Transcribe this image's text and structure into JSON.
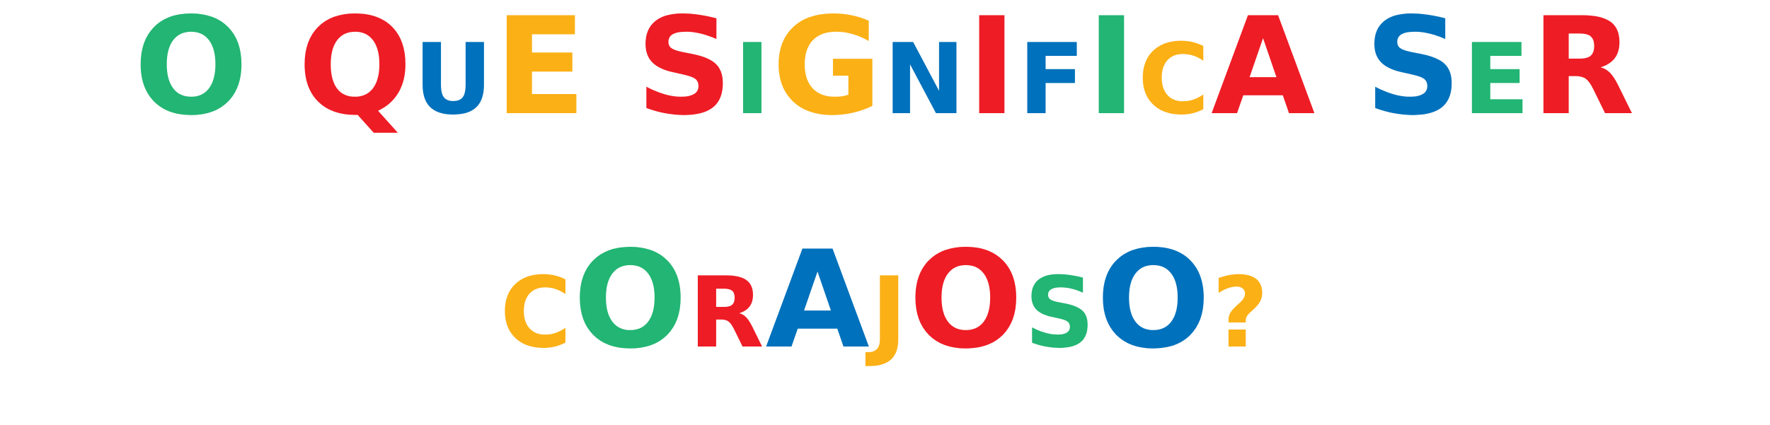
{
  "title_lines": [
    {
      "chars": [
        {
          "t": "O",
          "c": "#22B573",
          "s": "big"
        },
        {
          "t": " ",
          "c": "#000000",
          "s": "big"
        },
        {
          "t": "Q",
          "c": "#EE1C25",
          "s": "big"
        },
        {
          "t": "U",
          "c": "#0071BC",
          "s": "small"
        },
        {
          "t": "E",
          "c": "#FBB016",
          "s": "big"
        },
        {
          "t": " ",
          "c": "#000000",
          "s": "big"
        },
        {
          "t": "S",
          "c": "#EE1C25",
          "s": "big"
        },
        {
          "t": "I",
          "c": "#22B573",
          "s": "small"
        },
        {
          "t": "G",
          "c": "#FBB016",
          "s": "big"
        },
        {
          "t": "N",
          "c": "#0071BC",
          "s": "small"
        },
        {
          "t": "I",
          "c": "#EE1C25",
          "s": "big"
        },
        {
          "t": "F",
          "c": "#0071BC",
          "s": "small"
        },
        {
          "t": "I",
          "c": "#22B573",
          "s": "big"
        },
        {
          "t": "C",
          "c": "#FBB016",
          "s": "small"
        },
        {
          "t": "A",
          "c": "#EE1C25",
          "s": "big"
        },
        {
          "t": " ",
          "c": "#000000",
          "s": "big"
        },
        {
          "t": "S",
          "c": "#0071BC",
          "s": "big"
        },
        {
          "t": "E",
          "c": "#22B573",
          "s": "small"
        },
        {
          "t": "R",
          "c": "#EE1C25",
          "s": "big"
        }
      ]
    },
    {
      "chars": [
        {
          "t": "C",
          "c": "#FBB016",
          "s": "small"
        },
        {
          "t": "O",
          "c": "#22B573",
          "s": "big"
        },
        {
          "t": "R",
          "c": "#EE1C25",
          "s": "small"
        },
        {
          "t": "A",
          "c": "#0071BC",
          "s": "big"
        },
        {
          "t": "J",
          "c": "#FBB016",
          "s": "small"
        },
        {
          "t": "O",
          "c": "#EE1C25",
          "s": "big"
        },
        {
          "t": "S",
          "c": "#22B573",
          "s": "small"
        },
        {
          "t": "O",
          "c": "#0071BC",
          "s": "big"
        },
        {
          "t": "?",
          "c": "#FBB016",
          "s": "small"
        }
      ]
    }
  ]
}
